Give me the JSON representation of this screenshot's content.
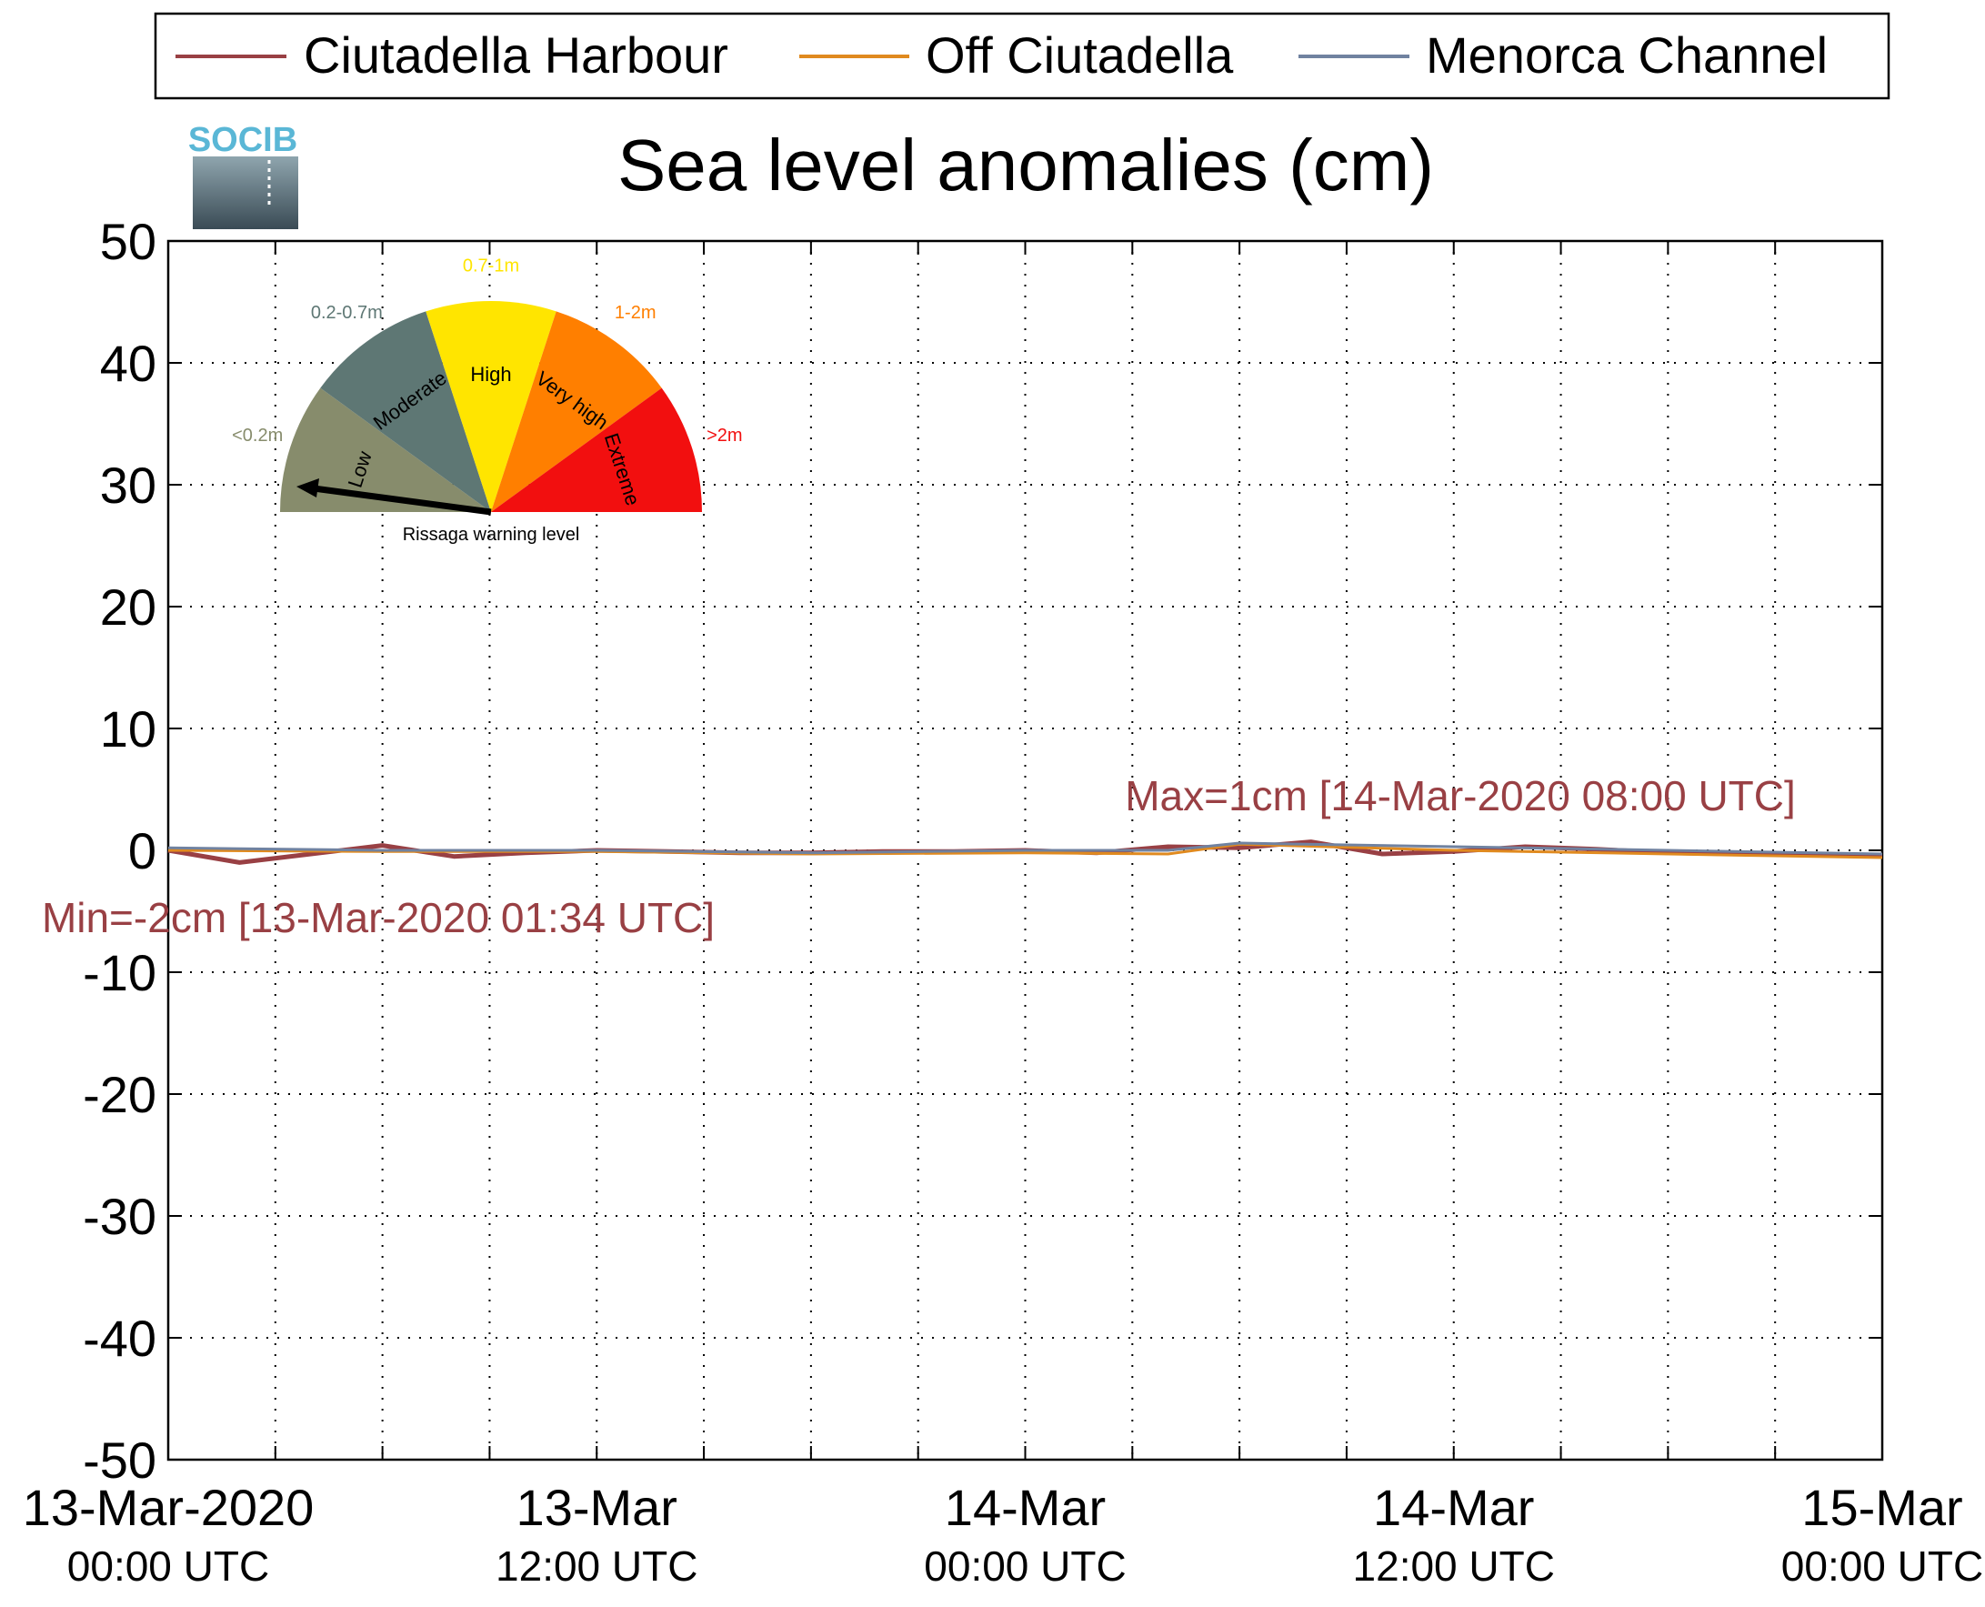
{
  "logo": {
    "text": "SOCIB"
  },
  "colors": {
    "ciutadella_harbour": "#994044",
    "off_ciutadella": "#e08a1f",
    "menorca_channel": "#7082a0",
    "annotation": "#994044",
    "gauge_low": "#878c6c",
    "gauge_moderate": "#5e7774",
    "gauge_high": "#ffe500",
    "gauge_very_high": "#ff7f00",
    "gauge_extreme": "#f20f0f"
  },
  "chart_data": {
    "type": "line",
    "title": "Sea level anomalies (cm)",
    "xlabel": "",
    "ylabel": "",
    "ylim": [
      -50,
      50
    ],
    "yticks": [
      50,
      40,
      30,
      20,
      10,
      0,
      -10,
      -20,
      -30,
      -40,
      -50
    ],
    "xlim": [
      "2020-03-13 00:00",
      "2020-03-15 00:00"
    ],
    "x_tick_labels": [
      {
        "date": "13-Mar-2020",
        "time": "00:00 UTC"
      },
      {
        "date": "13-Mar",
        "time": "12:00 UTC"
      },
      {
        "date": "14-Mar",
        "time": "00:00 UTC"
      },
      {
        "date": "14-Mar",
        "time": "12:00 UTC"
      },
      {
        "date": "15-Mar",
        "time": "00:00 UTC"
      }
    ],
    "grid": true,
    "legend_position": "top",
    "series": [
      {
        "name": "Ciutadella Harbour",
        "x": [
          "2020-03-13 00:00",
          "2020-03-13 02:00",
          "2020-03-13 04:00",
          "2020-03-13 06:00",
          "2020-03-13 08:00",
          "2020-03-13 10:00",
          "2020-03-13 12:00",
          "2020-03-13 14:00",
          "2020-03-13 16:00",
          "2020-03-13 18:00",
          "2020-03-13 20:00",
          "2020-03-13 22:00",
          "2020-03-14 00:00",
          "2020-03-14 02:00",
          "2020-03-14 04:00",
          "2020-03-14 06:00",
          "2020-03-14 08:00",
          "2020-03-14 10:00",
          "2020-03-14 12:00",
          "2020-03-14 14:00",
          "2020-03-14 16:00",
          "2020-03-14 18:00",
          "2020-03-14 20:00",
          "2020-03-14 22:00",
          "2020-03-15 00:00"
        ],
        "y": [
          0.0,
          -1.0,
          -0.3,
          0.4,
          -0.5,
          -0.2,
          0.0,
          -0.1,
          -0.2,
          -0.2,
          -0.1,
          -0.1,
          0.0,
          -0.2,
          0.3,
          0.2,
          0.7,
          -0.3,
          -0.1,
          0.3,
          0.1,
          -0.2,
          -0.3,
          -0.3,
          -0.4
        ],
        "min_annotation": "Min=-2cm [13-Mar-2020 01:34 UTC]",
        "max_annotation": "Max=1cm [14-Mar-2020 08:00 UTC]"
      },
      {
        "name": "Off Ciutadella",
        "x": [
          "2020-03-13 00:00",
          "2020-03-13 06:00",
          "2020-03-13 12:00",
          "2020-03-13 18:00",
          "2020-03-14 00:00",
          "2020-03-14 04:00",
          "2020-03-14 06:00",
          "2020-03-14 12:00",
          "2020-03-14 18:00",
          "2020-03-15 00:00"
        ],
        "y": [
          0.0,
          -0.1,
          -0.1,
          -0.3,
          -0.2,
          -0.3,
          0.5,
          0.0,
          -0.3,
          -0.6
        ]
      },
      {
        "name": "Menorca Channel",
        "x": [
          "2020-03-13 00:00",
          "2020-03-13 06:00",
          "2020-03-13 12:00",
          "2020-03-13 18:00",
          "2020-03-14 00:00",
          "2020-03-14 04:00",
          "2020-03-14 06:00",
          "2020-03-14 12:00",
          "2020-03-14 18:00",
          "2020-03-15 00:00"
        ],
        "y": [
          0.2,
          0.0,
          0.0,
          -0.2,
          0.0,
          0.0,
          0.6,
          0.3,
          0.0,
          -0.3
        ]
      }
    ]
  },
  "gauge": {
    "caption": "Rissaga warning level",
    "segments": [
      {
        "label": "Low",
        "range": "<0.2m"
      },
      {
        "label": "Moderate",
        "range": "0.2-0.7m"
      },
      {
        "label": "High",
        "range": "0.7-1m"
      },
      {
        "label": "Very high",
        "range": "1-2m"
      },
      {
        "label": "Extreme",
        "range": ">2m"
      }
    ],
    "current_level": "Low"
  }
}
